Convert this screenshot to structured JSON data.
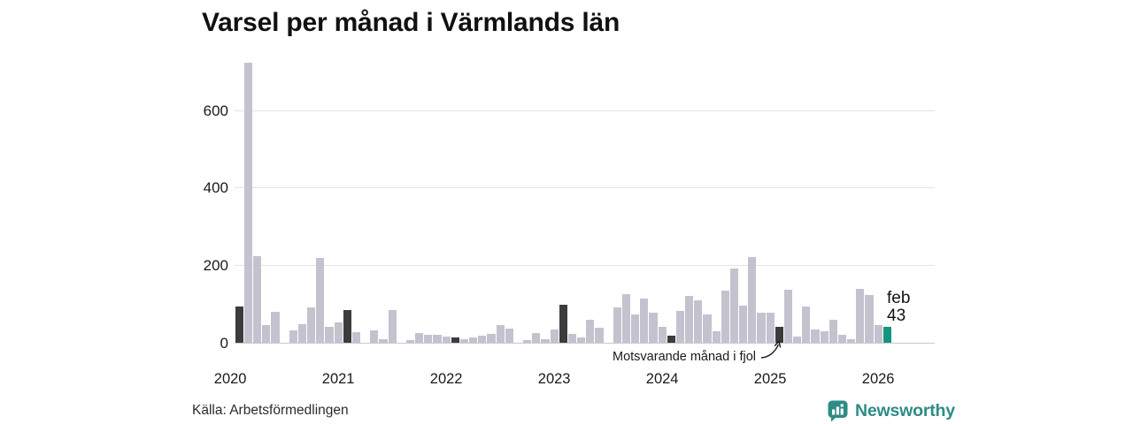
{
  "title": "Varsel per månad i Värmlands län",
  "source": "Källa: Arbetsförmedlingen",
  "brand": {
    "name": "Newsworthy"
  },
  "annotation": {
    "text": "Motsvarande månad i fjol"
  },
  "current_label": {
    "month": "feb",
    "value": "43"
  },
  "y_axis": {
    "ticks": [
      "0",
      "200",
      "400",
      "600"
    ]
  },
  "x_axis": {
    "years": [
      "2020",
      "2021",
      "2022",
      "2023",
      "2024",
      "2025",
      "2026"
    ]
  },
  "colors": {
    "bar": "#c5c2cf",
    "dark": "#3c3c3c",
    "accent": "#15947e",
    "grid": "#e4e4ea",
    "baseline": "#c9c8d2",
    "brand": "#2e8c85"
  },
  "chart_data": {
    "type": "bar",
    "title": "Varsel per månad i Värmlands län",
    "xlabel": "",
    "ylabel": "",
    "ylim": [
      0,
      737
    ],
    "grid": true,
    "legend": false,
    "categories": [
      "feb 2020",
      "mar 2020",
      "apr 2020",
      "maj 2020",
      "jun 2020",
      "jul 2020",
      "aug 2020",
      "sep 2020",
      "okt 2020",
      "nov 2020",
      "dec 2020",
      "jan 2021",
      "feb 2021",
      "mar 2021",
      "apr 2021",
      "maj 2021",
      "jun 2021",
      "jul 2021",
      "aug 2021",
      "sep 2021",
      "okt 2021",
      "nov 2021",
      "dec 2021",
      "jan 2022",
      "feb 2022",
      "mar 2022",
      "apr 2022",
      "maj 2022",
      "jun 2022",
      "jul 2022",
      "aug 2022",
      "sep 2022",
      "okt 2022",
      "nov 2022",
      "dec 2022",
      "jan 2023",
      "feb 2023",
      "mar 2023",
      "apr 2023",
      "maj 2023",
      "jun 2023",
      "jul 2023",
      "aug 2023",
      "sep 2023",
      "okt 2023",
      "nov 2023",
      "dec 2023",
      "jan 2024",
      "feb 2024",
      "mar 2024",
      "apr 2024",
      "maj 2024",
      "jun 2024",
      "jul 2024",
      "aug 2024",
      "sep 2024",
      "okt 2024",
      "nov 2024",
      "dec 2024",
      "jan 2025",
      "feb 2025",
      "mar 2025",
      "apr 2025",
      "maj 2025",
      "jun 2025",
      "jul 2025",
      "aug 2025",
      "sep 2025",
      "okt 2025",
      "nov 2025",
      "dec 2025",
      "jan 2026",
      "feb 2026"
    ],
    "values": [
      95,
      722,
      225,
      46,
      81,
      0,
      33,
      49,
      93,
      220,
      42,
      53,
      86,
      29,
      0,
      34,
      11,
      86,
      0,
      8,
      26,
      22,
      22,
      16,
      15,
      10,
      14,
      19,
      23,
      47,
      38,
      2,
      8,
      26,
      11,
      36,
      99,
      24,
      15,
      61,
      40,
      0,
      93,
      127,
      74,
      116,
      78,
      43,
      20,
      83,
      121,
      110,
      74,
      30,
      135,
      192,
      97,
      221,
      78,
      78,
      43,
      137,
      17,
      94,
      36,
      30,
      61,
      21,
      11,
      140,
      124,
      47,
      43
    ],
    "dark_indices": [
      0,
      12,
      24,
      36,
      48,
      60
    ],
    "dark_meaning": "Motsvarande månad i fjol",
    "accent_index": 72,
    "accent_label": "feb 43"
  }
}
